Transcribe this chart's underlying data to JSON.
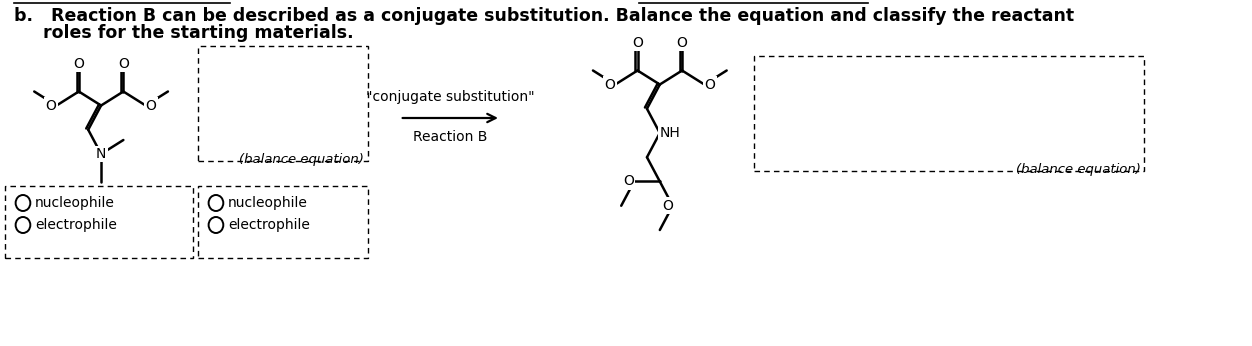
{
  "bg_color": "#ffffff",
  "title_line1": "b.   Reaction B can be described as a conjugate substitution. Balance the equation and classify the reactant",
  "title_line2": "roles for the starting materials.",
  "arrow_label_top": "\"conjugate substitution\"",
  "arrow_label_bottom": "Reaction B",
  "balance_eq_italic": "(balance equation)",
  "nucleophile_label": "nucleophile",
  "electrophile_label": "electrophile",
  "text_color": "#000000",
  "font_size_title": 12.5,
  "font_size_body": 11
}
